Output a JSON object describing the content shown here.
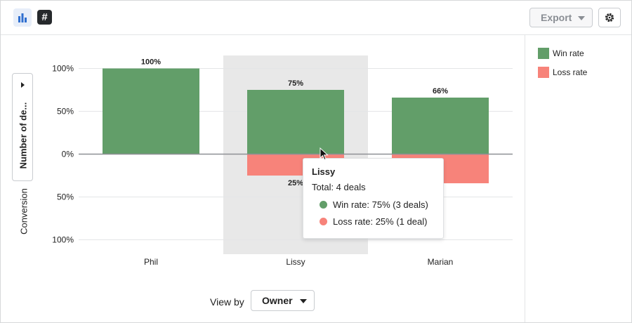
{
  "toolbar": {
    "export_label": "Export",
    "icons": [
      "bar-chart-icon",
      "hash-icon",
      "gear-icon"
    ]
  },
  "y_axis_toggle_label": "Number of de...",
  "y_axis_title": "Conversion",
  "view_by": {
    "label": "View by",
    "value": "Owner"
  },
  "legend": [
    {
      "label": "Win rate",
      "color": "#629e69"
    },
    {
      "label": "Loss rate",
      "color": "#f7837a"
    }
  ],
  "tooltip": {
    "title": "Lissy",
    "total": "Total: 4 deals",
    "rows": [
      {
        "text": "Win rate: 75% (3 deals)",
        "color": "#629e69"
      },
      {
        "text": "Loss rate: 25% (1 deal)",
        "color": "#f7837a"
      }
    ]
  },
  "chart_data": {
    "type": "bar",
    "categories": [
      "Phil",
      "Lissy",
      "Marian"
    ],
    "series": [
      {
        "name": "Win rate",
        "values": [
          100,
          75,
          66
        ],
        "labels": [
          "100%",
          "75%",
          "66%"
        ],
        "color": "#629e69"
      },
      {
        "name": "Loss rate",
        "values": [
          0,
          25,
          34
        ],
        "labels": [
          "",
          "25%",
          "%"
        ],
        "color": "#f7837a"
      }
    ],
    "ylabel": "Conversion",
    "yticks": [
      "100%",
      "50%",
      "0%",
      "50%",
      "100%"
    ],
    "ylim": [
      -100,
      100
    ],
    "highlighted_category": "Lissy",
    "grid": true,
    "legend_position": "right"
  }
}
